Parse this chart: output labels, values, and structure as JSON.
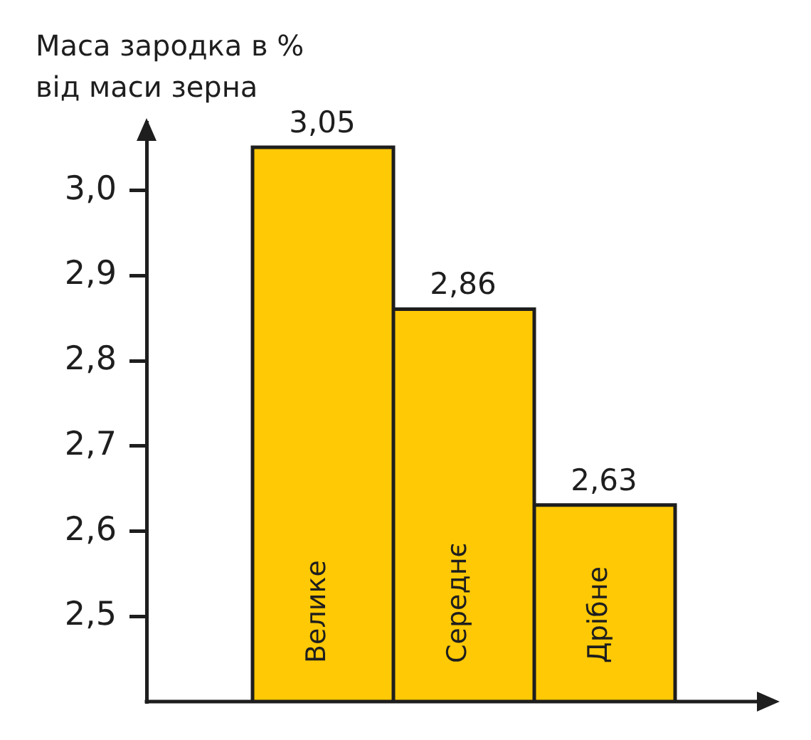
{
  "chart_data": {
    "type": "bar",
    "ylabel": "Маса зародка в % від маси зерна",
    "categories": [
      "Велике",
      "Середнє",
      "Дрібне"
    ],
    "values": [
      3.05,
      2.86,
      2.63
    ],
    "value_labels": [
      "3,05",
      "2,86",
      "2,63"
    ],
    "color": "#ffc905",
    "ylim": [
      2.4,
      3.08
    ],
    "yticks": [
      {
        "value": 2.5,
        "label": "2,5"
      },
      {
        "value": 2.6,
        "label": "2,6"
      },
      {
        "value": 2.7,
        "label": "2,7"
      },
      {
        "value": 2.8,
        "label": "2,8"
      },
      {
        "value": 2.9,
        "label": "2,9"
      },
      {
        "value": 3.0,
        "label": "3,0"
      }
    ]
  }
}
